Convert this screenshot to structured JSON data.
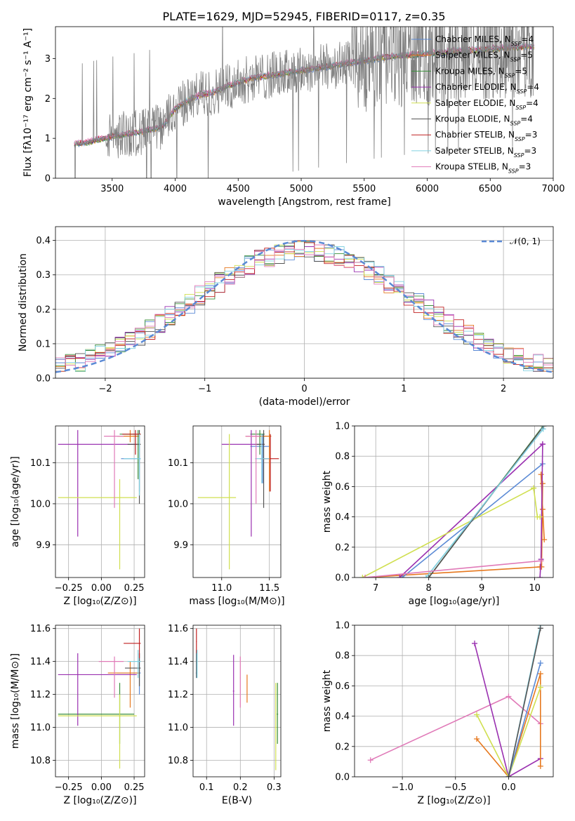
{
  "colors": [
    "#5b8ad5",
    "#e6781e",
    "#3a8f3a",
    "#9a30b0",
    "#d0df50",
    "#555555",
    "#c02020",
    "#80d0e0",
    "#e07ab8",
    "#808080"
  ],
  "chart_data": [
    {
      "id": "spectrum",
      "type": "line",
      "title": "PLATE=1629, MJD=52945, FIBERID=0117, z=0.35",
      "xlabel": "wavelength [Angstrom, rest frame]",
      "ylabel": "Flux [fλ10⁻¹⁷ erg cm⁻² s⁻¹ A⁻¹]",
      "xlim": [
        3050,
        7000
      ],
      "ylim": [
        0,
        3.8
      ],
      "xticks": [
        "3500",
        "4000",
        "4500",
        "5000",
        "5500",
        "6000",
        "6500",
        "7000"
      ],
      "yticks": [
        "0",
        "1",
        "2",
        "3"
      ],
      "grid": false,
      "legend_position": "top-right",
      "legend": [
        "Chabrier MILES, N_SSP=4",
        "Salpeter MILES, N_SSP=5",
        "Kroupa MILES, N_SSP=5",
        "Chabrier ELODIE, N_SSP=4",
        "Salpeter ELODIE, N_SSP=4",
        "Kroupa ELODIE, N_SSP=4",
        "Chabrier STELIB, N_SSP=3",
        "Salpeter STELIB, N_SSP=3",
        "Kroupa STELIB, N_SSP=3"
      ],
      "continuum": {
        "x": [
          3200,
          3300,
          3400,
          3500,
          3600,
          3700,
          3800,
          3900,
          4000,
          4100,
          4200,
          4300,
          4400,
          4500,
          4600,
          4700,
          4800,
          4900,
          5000,
          5100,
          5200,
          5300,
          5400,
          5500,
          5600,
          5700,
          5800,
          5900,
          6000,
          6100,
          6200,
          6300,
          6400,
          6500,
          6600,
          6700,
          6800
        ],
        "y": [
          0.85,
          0.9,
          0.98,
          1.05,
          1.1,
          1.15,
          1.22,
          1.3,
          1.75,
          1.95,
          2.1,
          2.15,
          2.3,
          2.4,
          2.5,
          2.55,
          2.6,
          2.65,
          2.7,
          2.75,
          2.8,
          2.85,
          2.9,
          2.95,
          3.0,
          3.05,
          3.08,
          3.1,
          3.12,
          3.15,
          3.18,
          3.2,
          3.22,
          3.25,
          3.27,
          3.28,
          3.3
        ]
      },
      "data_range_angstrom": [
        3200,
        6850
      ]
    },
    {
      "id": "residuals",
      "type": "line",
      "xlabel": "(data-model)/error",
      "ylabel": "Normed distribution",
      "xlim": [
        -2.5,
        2.5
      ],
      "ylim": [
        0,
        0.44
      ],
      "xticks": [
        "−2",
        "−1",
        "0",
        "1",
        "2"
      ],
      "yticks": [
        "0.0",
        "0.1",
        "0.2",
        "0.3",
        "0.4"
      ],
      "grid": true,
      "legend_position": "top-right",
      "legend": [
        "𝒩(0, 1)"
      ],
      "bin_width": 0.1,
      "series_note": "9 step histograms approximating a standard normal, peak near 0.4"
    },
    {
      "id": "age-vs-Z",
      "type": "scatter",
      "xlabel": "Z [log₁₀(Z/Z⊙)]",
      "ylabel": "age  [log₁₀(age/yr)]",
      "xlim": [
        -0.35,
        0.33
      ],
      "ylim": [
        9.82,
        10.19
      ],
      "xticks": [
        "−0.25",
        "0.00",
        "0.25"
      ],
      "yticks": [
        "9.9",
        "10.0",
        "10.1"
      ],
      "grid": true,
      "crosses": [
        {
          "c": 0,
          "x": 0.29,
          "y": 10.11,
          "xl": 0.15,
          "xh": 0.3,
          "yl": 10.03,
          "yh": 10.17
        },
        {
          "c": 1,
          "x": 0.22,
          "y": 10.165,
          "xl": 0.12,
          "xh": 0.29,
          "yl": 10.15,
          "yh": 10.18
        },
        {
          "c": 2,
          "x": 0.28,
          "y": 10.17,
          "xl": 0.14,
          "xh": 0.3,
          "yl": 10.06,
          "yh": 10.18
        },
        {
          "c": 3,
          "x": -0.18,
          "y": 10.145,
          "xl": -0.33,
          "xh": 0.27,
          "yl": 9.92,
          "yh": 10.18
        },
        {
          "c": 4,
          "x": 0.14,
          "y": 10.015,
          "xl": -0.33,
          "xh": 0.27,
          "yl": 9.84,
          "yh": 10.06
        },
        {
          "c": 5,
          "x": 0.29,
          "y": 10.145,
          "xl": 0.2,
          "xh": 0.3,
          "yl": 10.0,
          "yh": 10.18
        },
        {
          "c": 6,
          "x": 0.26,
          "y": 10.17,
          "xl": 0.16,
          "xh": 0.3,
          "yl": 10.12,
          "yh": 10.18
        },
        {
          "c": 7,
          "x": 0.29,
          "y": 10.11,
          "xl": 0.17,
          "xh": 0.3,
          "yl": 10.02,
          "yh": 10.17
        },
        {
          "c": 8,
          "x": 0.1,
          "y": 10.165,
          "xl": 0.02,
          "xh": 0.17,
          "yl": 9.99,
          "yh": 10.18
        }
      ]
    },
    {
      "id": "age-vs-mass",
      "type": "scatter",
      "xlabel": "mass [log₁₀(M/M⊙)]",
      "ylabel": "",
      "xlim": [
        10.7,
        11.62
      ],
      "ylim": [
        9.82,
        10.19
      ],
      "xticks": [
        "11.0",
        "11.5"
      ],
      "yticks": [
        "9.9",
        "10.0",
        "10.1"
      ],
      "grid": true,
      "crosses": [
        {
          "c": 0,
          "x": 11.43,
          "y": 10.14,
          "xl": 11.3,
          "xh": 11.5,
          "yl": 10.05,
          "yh": 10.17
        },
        {
          "c": 1,
          "x": 11.5,
          "y": 10.165,
          "xl": 11.25,
          "xh": 11.52,
          "yl": 10.03,
          "yh": 10.18
        },
        {
          "c": 2,
          "x": 11.4,
          "y": 10.17,
          "xl": 11.3,
          "xh": 11.45,
          "yl": 10.12,
          "yh": 10.18
        },
        {
          "c": 3,
          "x": 11.31,
          "y": 10.145,
          "xl": 11.0,
          "xh": 11.45,
          "yl": 9.92,
          "yh": 10.18
        },
        {
          "c": 4,
          "x": 11.08,
          "y": 10.015,
          "xl": 10.75,
          "xh": 11.15,
          "yl": 9.84,
          "yh": 10.17
        },
        {
          "c": 5,
          "x": 11.44,
          "y": 10.145,
          "xl": 11.35,
          "xh": 11.45,
          "yl": 9.99,
          "yh": 10.18
        },
        {
          "c": 6,
          "x": 11.51,
          "y": 10.11,
          "xl": 11.4,
          "xh": 11.6,
          "yl": 10.03,
          "yh": 10.17
        },
        {
          "c": 7,
          "x": 11.42,
          "y": 10.11,
          "xl": 11.35,
          "xh": 11.5,
          "yl": 10.05,
          "yh": 10.17
        },
        {
          "c": 8,
          "x": 11.36,
          "y": 10.165,
          "xl": 11.25,
          "xh": 11.4,
          "yl": 10.0,
          "yh": 10.18
        }
      ]
    },
    {
      "id": "massweight-vs-age",
      "type": "line",
      "xlabel": "age  [log₁₀(age/yr)]",
      "ylabel": "mass weight",
      "xlim": [
        6.6,
        10.35
      ],
      "ylim": [
        0,
        1
      ],
      "xticks": [
        "7",
        "8",
        "9",
        "10"
      ],
      "yticks": [
        "0.0",
        "0.2",
        "0.4",
        "0.6",
        "0.8",
        "1.0"
      ],
      "grid": true,
      "series": [
        {
          "c": 1,
          "x": [
            10.18,
            10.15,
            10.12,
            10.15,
            10.13
          ],
          "y": [
            0.25,
            0.45,
            0.68,
            0.62,
            0.07
          ]
        },
        {
          "c": 1,
          "x": [
            10.1,
            6.8
          ],
          "y": [
            0.07,
            0.0
          ]
        },
        {
          "c": 0,
          "x": [
            10.15,
            7.5
          ],
          "y": [
            0.75,
            0.0
          ]
        },
        {
          "c": 3,
          "x": [
            10.15,
            7.45
          ],
          "y": [
            0.88,
            0.0
          ]
        },
        {
          "c": 3,
          "x": [
            10.15,
            10.12,
            10.1
          ],
          "y": [
            0.88,
            0.12,
            0.0
          ]
        },
        {
          "c": 4,
          "x": [
            9.98,
            10.05,
            10.1
          ],
          "y": [
            0.59,
            0.4,
            0.4
          ]
        },
        {
          "c": 4,
          "x": [
            9.98,
            6.75
          ],
          "y": [
            0.59,
            0.0
          ]
        },
        {
          "c": 2,
          "x": [
            10.16,
            8.0
          ],
          "y": [
            1.0,
            0.0
          ]
        },
        {
          "c": 5,
          "x": [
            10.17,
            8.0
          ],
          "y": [
            1.0,
            0.0
          ]
        },
        {
          "c": 7,
          "x": [
            10.16,
            7.95
          ],
          "y": [
            0.98,
            0.0
          ]
        },
        {
          "c": 8,
          "x": [
            10.12,
            6.8
          ],
          "y": [
            0.11,
            0.0
          ]
        }
      ]
    },
    {
      "id": "mass-vs-Z",
      "type": "scatter",
      "xlabel": "Z [log₁₀(Z/Z⊙)]",
      "ylabel": "mass [log₁₀(M/M⊙)]",
      "xlim": [
        -0.35,
        0.33
      ],
      "ylim": [
        10.7,
        11.62
      ],
      "xticks": [
        "−0.25",
        "0.00",
        "0.25"
      ],
      "yticks": [
        "10.8",
        "11.0",
        "11.2",
        "11.4",
        "11.6"
      ],
      "grid": true,
      "crosses": [
        {
          "c": 0,
          "x": 0.29,
          "y": 11.33,
          "xl": 0.12,
          "xh": 0.3,
          "yl": 11.2,
          "yh": 11.45
        },
        {
          "c": 1,
          "x": 0.22,
          "y": 11.33,
          "xl": 0.05,
          "xh": 0.29,
          "yl": 11.12,
          "yh": 11.4
        },
        {
          "c": 2,
          "x": 0.14,
          "y": 11.08,
          "xl": -0.33,
          "xh": 0.25,
          "yl": 10.9,
          "yh": 11.27
        },
        {
          "c": 3,
          "x": -0.18,
          "y": 11.32,
          "xl": -0.33,
          "xh": 0.27,
          "yl": 11.01,
          "yh": 11.45
        },
        {
          "c": 4,
          "x": 0.14,
          "y": 11.07,
          "xl": -0.33,
          "xh": 0.27,
          "yl": 10.75,
          "yh": 11.2
        },
        {
          "c": 5,
          "x": 0.29,
          "y": 11.36,
          "xl": 0.18,
          "xh": 0.3,
          "yl": 11.25,
          "yh": 11.45
        },
        {
          "c": 6,
          "x": 0.29,
          "y": 11.51,
          "xl": 0.17,
          "xh": 0.3,
          "yl": 11.42,
          "yh": 11.6
        },
        {
          "c": 7,
          "x": 0.28,
          "y": 11.4,
          "xl": 0.2,
          "xh": 0.3,
          "yl": 11.3,
          "yh": 11.47
        },
        {
          "c": 8,
          "x": 0.1,
          "y": 11.4,
          "xl": -0.02,
          "xh": 0.17,
          "yl": 11.18,
          "yh": 11.43
        }
      ]
    },
    {
      "id": "mass-vs-EBV",
      "type": "scatter",
      "xlabel": "E(B-V)",
      "ylabel": "",
      "xlim": [
        0.06,
        0.32
      ],
      "ylim": [
        10.7,
        11.62
      ],
      "xticks": [
        "0.1",
        "0.2",
        "0.3"
      ],
      "yticks": [
        "10.8",
        "11.0",
        "11.2",
        "11.4",
        "11.6"
      ],
      "grid": true,
      "crosses": [
        {
          "c": 0,
          "x": 0.07,
          "y": 11.33,
          "xl": 0.068,
          "xh": 0.072,
          "yl": 11.3,
          "yh": 11.45
        },
        {
          "c": 1,
          "x": 0.22,
          "y": 11.22,
          "xl": 0.219,
          "xh": 0.221,
          "yl": 11.15,
          "yh": 11.32
        },
        {
          "c": 2,
          "x": 0.31,
          "y": 11.08,
          "xl": 0.308,
          "xh": 0.312,
          "yl": 10.9,
          "yh": 11.27
        },
        {
          "c": 3,
          "x": 0.18,
          "y": 11.22,
          "xl": 0.178,
          "xh": 0.182,
          "yl": 11.01,
          "yh": 11.44
        },
        {
          "c": 4,
          "x": 0.305,
          "y": 11.0,
          "xl": 0.303,
          "xh": 0.307,
          "yl": 10.74,
          "yh": 11.27
        },
        {
          "c": 5,
          "x": 0.07,
          "y": 11.4,
          "xl": 0.069,
          "xh": 0.071,
          "yl": 11.3,
          "yh": 11.47
        },
        {
          "c": 6,
          "x": 0.07,
          "y": 11.52,
          "xl": 0.069,
          "xh": 0.071,
          "yl": 11.45,
          "yh": 11.6
        },
        {
          "c": 7,
          "x": 0.072,
          "y": 11.38,
          "xl": 0.071,
          "xh": 0.073,
          "yl": 11.3,
          "yh": 11.47
        },
        {
          "c": 8,
          "x": 0.2,
          "y": 11.3,
          "xl": 0.199,
          "xh": 0.201,
          "yl": 11.12,
          "yh": 11.43
        }
      ]
    },
    {
      "id": "massweight-vs-Z",
      "type": "line",
      "xlabel": "Z [log₁₀(Z/Z⊙)]",
      "ylabel": "mass weight",
      "xlim": [
        -1.45,
        0.42
      ],
      "ylim": [
        0,
        1
      ],
      "xticks": [
        "−1.0",
        "−0.5",
        "0.0"
      ],
      "yticks": [
        "0.0",
        "0.2",
        "0.4",
        "0.6",
        "0.8",
        "1.0"
      ],
      "grid": true,
      "series": [
        {
          "c": 8,
          "x": [
            -1.3,
            0.0,
            0.3
          ],
          "y": [
            0.11,
            0.53,
            0.35
          ]
        },
        {
          "c": 3,
          "x": [
            -0.32,
            0.0,
            0.3
          ],
          "y": [
            0.88,
            0.0,
            0.12
          ]
        },
        {
          "c": 1,
          "x": [
            -0.3,
            0.0,
            0.3,
            0.3
          ],
          "y": [
            0.25,
            0.0,
            0.68,
            0.07
          ]
        },
        {
          "c": 4,
          "x": [
            -0.3,
            0.0,
            0.3
          ],
          "y": [
            0.41,
            0.0,
            0.59
          ]
        },
        {
          "c": 0,
          "x": [
            0.0,
            0.3
          ],
          "y": [
            0.0,
            0.75
          ]
        },
        {
          "c": 7,
          "x": [
            0.0,
            0.3
          ],
          "y": [
            0.0,
            1.0
          ]
        },
        {
          "c": 5,
          "x": [
            0.0,
            0.3
          ],
          "y": [
            0.0,
            0.98
          ]
        }
      ]
    }
  ]
}
